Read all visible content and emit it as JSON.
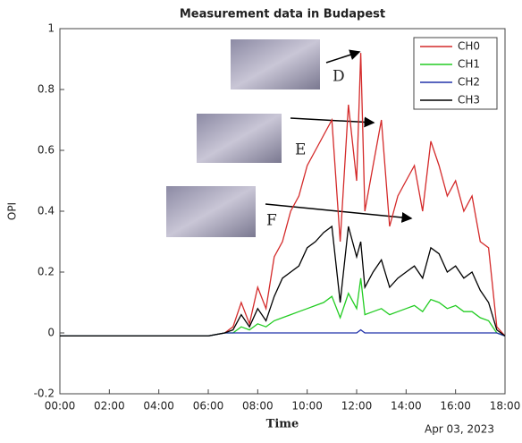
{
  "chart_data": {
    "type": "line",
    "title": "Measurement data in Budapest",
    "xlabel": "Time",
    "ylabel": "OPI",
    "date_label": "Apr 03, 2023",
    "x": [
      "00:00",
      "06:00",
      "06:40",
      "07:00",
      "07:20",
      "07:40",
      "08:00",
      "08:20",
      "08:40",
      "09:00",
      "09:20",
      "09:40",
      "10:00",
      "10:20",
      "10:40",
      "11:00",
      "11:20",
      "11:40",
      "12:00",
      "12:10",
      "12:20",
      "12:40",
      "13:00",
      "13:20",
      "13:40",
      "14:00",
      "14:20",
      "14:40",
      "15:00",
      "15:20",
      "15:40",
      "16:00",
      "16:20",
      "16:40",
      "17:00",
      "17:20",
      "17:40",
      "18:00"
    ],
    "series": [
      {
        "name": "CH0",
        "color": "#d42a2a",
        "values": [
          -0.01,
          -0.01,
          0.0,
          0.02,
          0.1,
          0.03,
          0.15,
          0.08,
          0.25,
          0.3,
          0.4,
          0.45,
          0.55,
          0.6,
          0.65,
          0.7,
          0.3,
          0.75,
          0.5,
          0.92,
          0.4,
          0.55,
          0.7,
          0.35,
          0.45,
          0.5,
          0.55,
          0.4,
          0.63,
          0.55,
          0.45,
          0.5,
          0.4,
          0.45,
          0.3,
          0.28,
          0.02,
          -0.01
        ]
      },
      {
        "name": "CH1",
        "color": "#22cc22",
        "values": [
          -0.01,
          -0.01,
          0.0,
          0.0,
          0.02,
          0.01,
          0.03,
          0.02,
          0.04,
          0.05,
          0.06,
          0.07,
          0.08,
          0.09,
          0.1,
          0.12,
          0.05,
          0.13,
          0.08,
          0.18,
          0.06,
          0.07,
          0.08,
          0.06,
          0.07,
          0.08,
          0.09,
          0.07,
          0.11,
          0.1,
          0.08,
          0.09,
          0.07,
          0.07,
          0.05,
          0.04,
          0.0,
          -0.01
        ]
      },
      {
        "name": "CH2",
        "color": "#2233aa",
        "values": [
          -0.01,
          -0.01,
          0.0,
          0.0,
          0.0,
          0.0,
          0.0,
          0.0,
          0.0,
          0.0,
          0.0,
          0.0,
          0.0,
          0.0,
          0.0,
          0.0,
          0.0,
          0.0,
          0.0,
          0.01,
          0.0,
          0.0,
          0.0,
          0.0,
          0.0,
          0.0,
          0.0,
          0.0,
          0.0,
          0.0,
          0.0,
          0.0,
          0.0,
          0.0,
          0.0,
          0.0,
          0.0,
          -0.01
        ]
      },
      {
        "name": "CH3",
        "color": "#000000",
        "values": [
          -0.01,
          -0.01,
          0.0,
          0.01,
          0.06,
          0.02,
          0.08,
          0.04,
          0.12,
          0.18,
          0.2,
          0.22,
          0.28,
          0.3,
          0.33,
          0.35,
          0.1,
          0.35,
          0.25,
          0.3,
          0.15,
          0.2,
          0.24,
          0.15,
          0.18,
          0.2,
          0.22,
          0.18,
          0.28,
          0.26,
          0.2,
          0.22,
          0.18,
          0.2,
          0.14,
          0.1,
          0.01,
          -0.01
        ]
      }
    ],
    "xlim": [
      "00:00",
      "18:00"
    ],
    "xticks": [
      "00:00",
      "02:00",
      "04:00",
      "06:00",
      "08:00",
      "10:00",
      "12:00",
      "14:00",
      "16:00",
      "18:00"
    ],
    "ylim": [
      -0.2,
      1
    ],
    "yticks": [
      -0.2,
      0,
      0.2,
      0.4,
      0.6,
      0.8,
      1
    ],
    "legend": "upper-right",
    "annotations": [
      "D",
      "E",
      "F"
    ]
  }
}
